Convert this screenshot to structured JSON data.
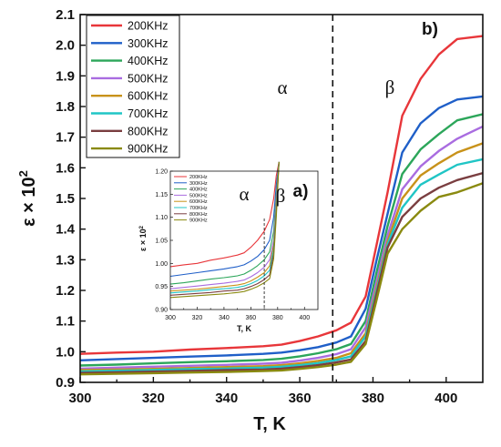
{
  "chart_data": [
    {
      "panel": "b)",
      "type": "line",
      "xlabel": "T, K",
      "ylabel": "ε × 10",
      "ylabel_exponent": "2",
      "xlim": [
        300,
        410
      ],
      "ylim": [
        0.9,
        2.1
      ],
      "xticks": [
        "300",
        "320",
        "340",
        "360",
        "380",
        "400"
      ],
      "yticks": [
        "0.9",
        "1.0",
        "1.1",
        "1.2",
        "1.3",
        "1.4",
        "1.5",
        "1.6",
        "1.7",
        "1.8",
        "1.9",
        "2.0",
        "2.1"
      ],
      "grid": false,
      "legend_position": "top-left",
      "phase_boundary_x": 369,
      "phase_labels": [
        "α",
        "β"
      ],
      "x": [
        300,
        310,
        320,
        330,
        340,
        350,
        355,
        360,
        365,
        370,
        374,
        378,
        381,
        384,
        388,
        393,
        398,
        403,
        410
      ],
      "series": [
        {
          "name": "200KHz",
          "color": "#e8363a",
          "values": [
            0.993,
            0.997,
            1.0,
            1.007,
            1.012,
            1.018,
            1.023,
            1.035,
            1.05,
            1.07,
            1.095,
            1.18,
            1.35,
            1.52,
            1.77,
            1.89,
            1.97,
            2.02,
            2.03
          ]
        },
        {
          "name": "300KHz",
          "color": "#1f5fc8",
          "values": [
            0.972,
            0.976,
            0.98,
            0.984,
            0.988,
            0.993,
            0.997,
            1.005,
            1.015,
            1.03,
            1.05,
            1.14,
            1.3,
            1.45,
            1.65,
            1.745,
            1.795,
            1.823,
            1.833
          ]
        },
        {
          "name": "400KHz",
          "color": "#2ca65a",
          "values": [
            0.955,
            0.958,
            0.962,
            0.966,
            0.969,
            0.973,
            0.977,
            0.985,
            0.995,
            1.008,
            1.025,
            1.1,
            1.26,
            1.41,
            1.58,
            1.66,
            1.71,
            1.755,
            1.775
          ]
        },
        {
          "name": "500KHz",
          "color": "#a96ce0",
          "values": [
            0.945,
            0.948,
            0.951,
            0.954,
            0.957,
            0.961,
            0.964,
            0.971,
            0.98,
            0.992,
            1.008,
            1.08,
            1.23,
            1.38,
            1.53,
            1.605,
            1.655,
            1.695,
            1.735
          ]
        },
        {
          "name": "600KHz",
          "color": "#c8921a",
          "values": [
            0.94,
            0.942,
            0.944,
            0.947,
            0.95,
            0.953,
            0.956,
            0.962,
            0.97,
            0.98,
            0.995,
            1.06,
            1.21,
            1.36,
            1.5,
            1.575,
            1.615,
            1.65,
            1.68
          ]
        },
        {
          "name": "700KHz",
          "color": "#20c5c5",
          "values": [
            0.936,
            0.938,
            0.94,
            0.943,
            0.945,
            0.948,
            0.951,
            0.956,
            0.963,
            0.973,
            0.985,
            1.05,
            1.2,
            1.35,
            1.47,
            1.545,
            1.578,
            1.61,
            1.628
          ]
        },
        {
          "name": "800KHz",
          "color": "#7a3e40",
          "values": [
            0.931,
            0.933,
            0.935,
            0.937,
            0.94,
            0.942,
            0.945,
            0.95,
            0.956,
            0.965,
            0.975,
            1.035,
            1.19,
            1.34,
            1.44,
            1.5,
            1.535,
            1.56,
            1.583
          ]
        },
        {
          "name": "900KHz",
          "color": "#8a8a10",
          "values": [
            0.926,
            0.928,
            0.93,
            0.932,
            0.934,
            0.937,
            0.939,
            0.944,
            0.95,
            0.958,
            0.967,
            1.025,
            1.17,
            1.32,
            1.4,
            1.46,
            1.505,
            1.52,
            1.55
          ]
        }
      ]
    },
    {
      "panel": "a)",
      "type": "line",
      "xlabel": "T, K",
      "ylabel": "ε × 10",
      "ylabel_exponent": "2",
      "xlim": [
        300,
        410
      ],
      "ylim": [
        0.9,
        1.2
      ],
      "xticks": [
        "300",
        "320",
        "340",
        "360",
        "380",
        "400"
      ],
      "yticks": [
        "0.90",
        "0.95",
        "1.00",
        "1.05",
        "1.10",
        "1.15",
        "1.20"
      ],
      "legend_position": "top-left",
      "phase_boundary_x": 370,
      "phase_labels": [
        "α",
        "β"
      ],
      "x": [
        300,
        310,
        320,
        330,
        340,
        350,
        355,
        360,
        365,
        370,
        374,
        377,
        379,
        381
      ],
      "series": [
        {
          "name": "200KHz",
          "color": "#e8363a",
          "values": [
            0.993,
            0.997,
            1.0,
            1.007,
            1.012,
            1.018,
            1.023,
            1.035,
            1.05,
            1.07,
            1.095,
            1.14,
            1.19,
            1.22
          ]
        },
        {
          "name": "300KHz",
          "color": "#1f5fc8",
          "values": [
            0.972,
            0.976,
            0.98,
            0.984,
            0.988,
            0.993,
            0.997,
            1.005,
            1.015,
            1.03,
            1.05,
            1.1,
            1.17,
            1.22
          ]
        },
        {
          "name": "400KHz",
          "color": "#2ca65a",
          "values": [
            0.955,
            0.958,
            0.962,
            0.966,
            0.969,
            0.973,
            0.977,
            0.985,
            0.995,
            1.008,
            1.025,
            1.07,
            1.15,
            1.22
          ]
        },
        {
          "name": "500KHz",
          "color": "#a96ce0",
          "values": [
            0.945,
            0.948,
            0.951,
            0.954,
            0.957,
            0.961,
            0.964,
            0.971,
            0.98,
            0.992,
            1.008,
            1.05,
            1.14,
            1.22
          ]
        },
        {
          "name": "600KHz",
          "color": "#c8921a",
          "values": [
            0.94,
            0.942,
            0.944,
            0.947,
            0.95,
            0.953,
            0.956,
            0.962,
            0.97,
            0.98,
            0.995,
            1.04,
            1.13,
            1.22
          ]
        },
        {
          "name": "700KHz",
          "color": "#20c5c5",
          "values": [
            0.936,
            0.938,
            0.94,
            0.943,
            0.945,
            0.948,
            0.951,
            0.956,
            0.963,
            0.973,
            0.985,
            1.03,
            1.12,
            1.22
          ]
        },
        {
          "name": "800KHz",
          "color": "#7a3e40",
          "values": [
            0.931,
            0.933,
            0.935,
            0.937,
            0.94,
            0.942,
            0.945,
            0.95,
            0.956,
            0.965,
            0.975,
            1.02,
            1.11,
            1.22
          ]
        },
        {
          "name": "900KHz",
          "color": "#8a8a10",
          "values": [
            0.926,
            0.928,
            0.93,
            0.932,
            0.934,
            0.937,
            0.939,
            0.944,
            0.95,
            0.958,
            0.967,
            1.01,
            1.1,
            1.22
          ]
        }
      ]
    }
  ]
}
